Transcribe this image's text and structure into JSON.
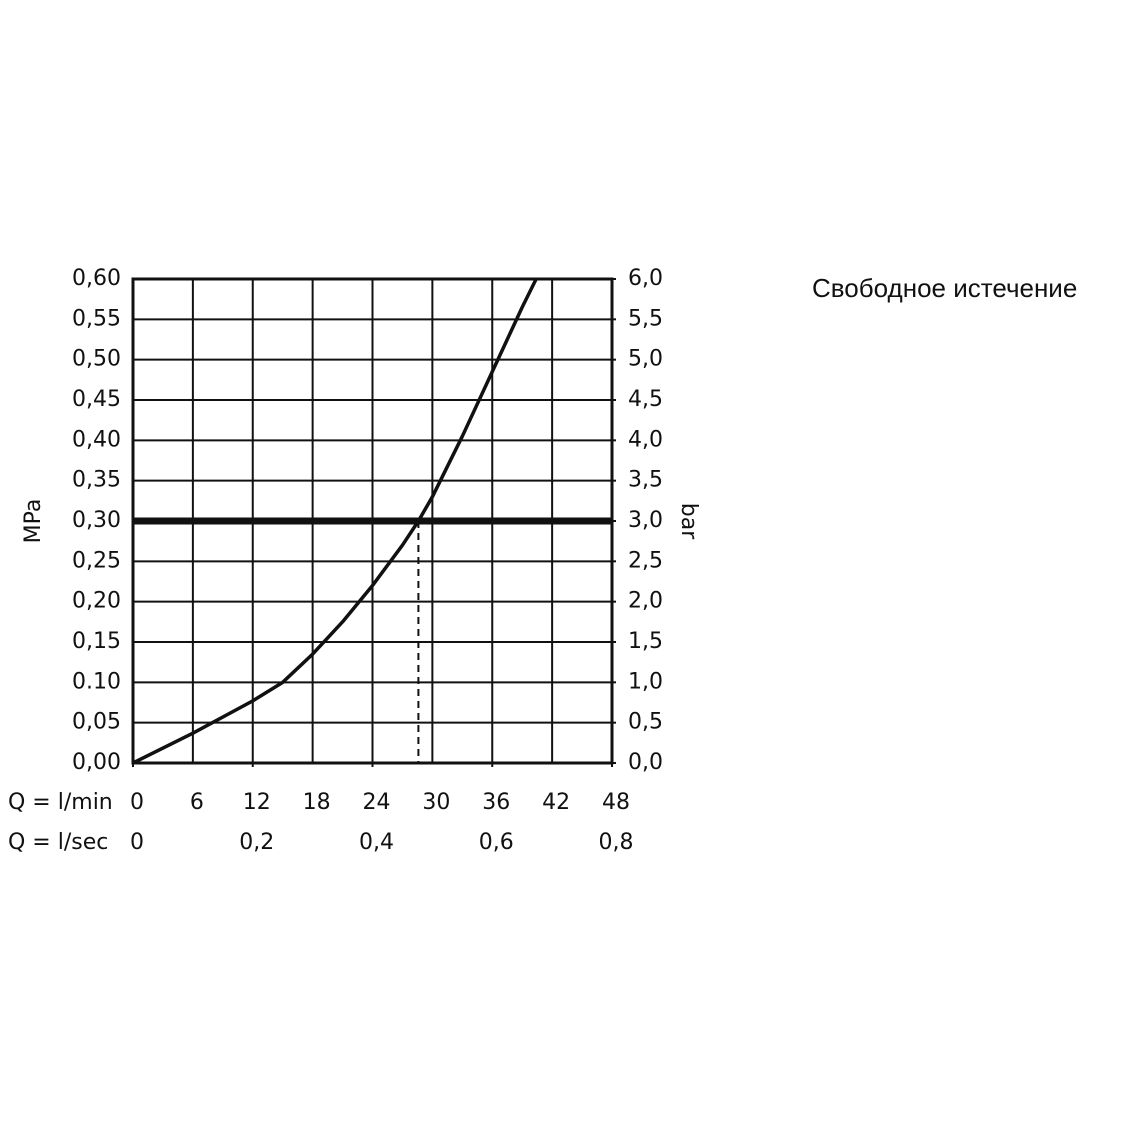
{
  "chart_data": {
    "type": "line",
    "title": "Свободное истечение",
    "ylabel": "MPa",
    "y2label": "bar",
    "xlabel": "Q = l/min",
    "x2label": "Q = l/sec",
    "xlim": [
      0,
      48
    ],
    "xticks": [
      0,
      6,
      12,
      18,
      24,
      30,
      36,
      42,
      48
    ],
    "x2lim": [
      0,
      0.8
    ],
    "x2ticks": [
      0,
      {
        "value": 0.2,
        "label": "0,2"
      },
      {
        "value": 0.4,
        "label": "0,4"
      },
      {
        "value": 0.6,
        "label": "0,6"
      },
      {
        "value": 0.8,
        "label": "0,8"
      }
    ],
    "ylim": [
      0,
      0.6
    ],
    "yticks": [
      {
        "value": 0,
        "label": "0,00"
      },
      {
        "value": 0.05,
        "label": "0,05"
      },
      {
        "value": 0.1,
        "label": "0.10"
      },
      {
        "value": 0.15,
        "label": "0,15"
      },
      {
        "value": 0.2,
        "label": "0,20"
      },
      {
        "value": 0.25,
        "label": "0,25"
      },
      {
        "value": 0.3,
        "label": "0,30"
      },
      {
        "value": 0.35,
        "label": "0,35"
      },
      {
        "value": 0.4,
        "label": "0,40"
      },
      {
        "value": 0.45,
        "label": "0,45"
      },
      {
        "value": 0.5,
        "label": "0,50"
      },
      {
        "value": 0.55,
        "label": "0,55"
      },
      {
        "value": 0.6,
        "label": "0,60"
      }
    ],
    "y2lim": [
      0,
      6
    ],
    "y2ticks": [
      {
        "value": 0,
        "label": "0,0"
      },
      {
        "value": 0.5,
        "label": "0,5"
      },
      {
        "value": 1,
        "label": "1,0"
      },
      {
        "value": 1.5,
        "label": "1,5"
      },
      {
        "value": 2,
        "label": "2,0"
      },
      {
        "value": 2.5,
        "label": "2,5"
      },
      {
        "value": 3,
        "label": "3,0"
      },
      {
        "value": 3.5,
        "label": "3,5"
      },
      {
        "value": 4,
        "label": "4,0"
      },
      {
        "value": 4.5,
        "label": "4,5"
      },
      {
        "value": 5,
        "label": "5,0"
      },
      {
        "value": 5.5,
        "label": "5,5"
      },
      {
        "value": 6,
        "label": "6,0"
      }
    ],
    "grid": true,
    "hlines": [
      0.3
    ],
    "vlines": [
      28.6
    ],
    "series": [
      {
        "color": "#111111",
        "x": [
          0,
          6,
          12,
          15,
          18,
          21,
          24,
          27,
          28.6,
          30,
          33,
          36,
          39,
          40.4
        ],
        "values": [
          0,
          0.037,
          0.077,
          0.1,
          0.135,
          0.175,
          0.22,
          0.27,
          0.3,
          0.33,
          0.405,
          0.485,
          0.565,
          0.6
        ]
      }
    ]
  }
}
